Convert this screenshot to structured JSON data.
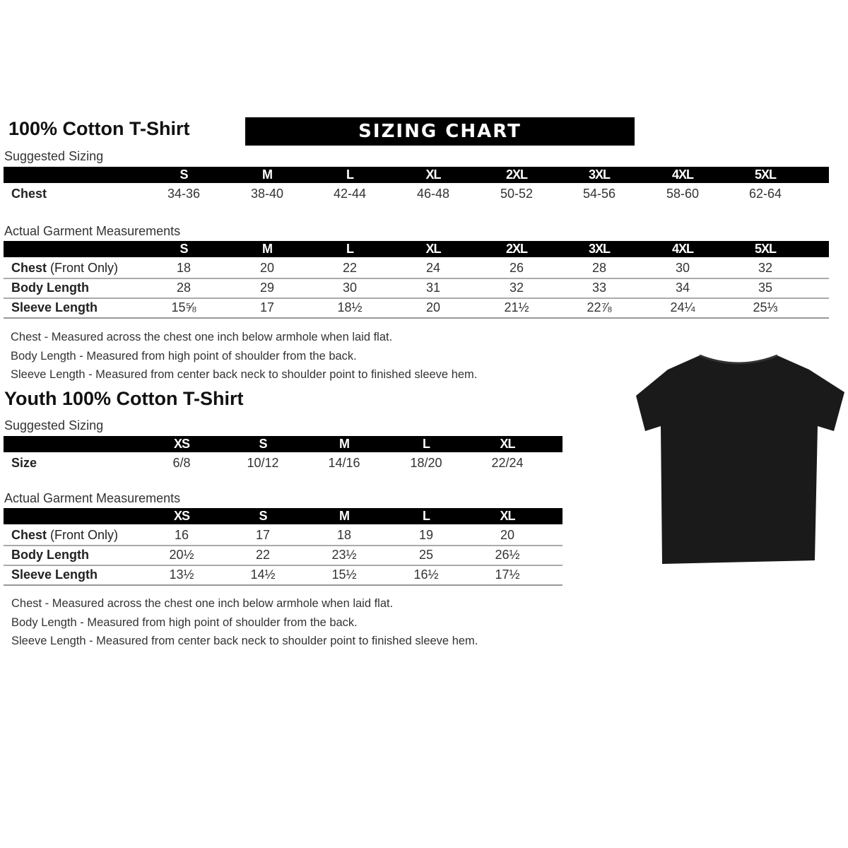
{
  "adult": {
    "title": "100% Cotton T-Shirt",
    "banner": "SIZING CHART",
    "suggested_label": "Suggested Sizing",
    "sizes": [
      "S",
      "M",
      "L",
      "XL",
      "2XL",
      "3XL",
      "4XL",
      "5XL"
    ],
    "suggested_rows": [
      {
        "label": "Chest",
        "values": [
          "34-36",
          "38-40",
          "42-44",
          "46-48",
          "50-52",
          "54-56",
          "58-60",
          "62-64"
        ]
      }
    ],
    "actual_label": "Actual Garment Measurements",
    "actual_rows": [
      {
        "label": "Chest",
        "label_note": "(Front Only)",
        "values": [
          "18",
          "20",
          "22",
          "24",
          "26",
          "28",
          "30",
          "32"
        ]
      },
      {
        "label": "Body Length",
        "label_note": "",
        "values": [
          "28",
          "29",
          "30",
          "31",
          "32",
          "33",
          "34",
          "35"
        ]
      },
      {
        "label": "Sleeve Length",
        "label_note": "",
        "values": [
          "15⅝",
          "17",
          "18½",
          "20",
          "21½",
          "22⅞",
          "24¼",
          "25⅓"
        ]
      }
    ],
    "notes": [
      "Chest - Measured across the chest one inch below armhole when laid flat.",
      "Body Length - Measured from high point of shoulder from the back.",
      "Sleeve Length - Measured from center back neck to shoulder point to finished sleeve hem."
    ]
  },
  "youth": {
    "title": "Youth 100% Cotton T-Shirt",
    "suggested_label": "Suggested Sizing",
    "sizes": [
      "XS",
      "S",
      "M",
      "L",
      "XL"
    ],
    "suggested_rows": [
      {
        "label": "Size",
        "values": [
          "6/8",
          "10/12",
          "14/16",
          "18/20",
          "22/24"
        ]
      }
    ],
    "actual_label": "Actual Garment Measurements",
    "actual_rows": [
      {
        "label": "Chest",
        "label_note": "(Front Only)",
        "values": [
          "16",
          "17",
          "18",
          "19",
          "20"
        ]
      },
      {
        "label": "Body Length",
        "label_note": "",
        "values": [
          "20½",
          "22",
          "23½",
          "25",
          "26½"
        ]
      },
      {
        "label": "Sleeve Length",
        "label_note": "",
        "values": [
          "13½",
          "14½",
          "15½",
          "16½",
          "17½"
        ]
      }
    ],
    "notes": [
      "Chest - Measured across the chest one inch below armhole when laid flat.",
      "Body Length - Measured from high point of shoulder from the back.",
      "Sleeve Length - Measured from center back neck to shoulder point to finished sleeve hem."
    ]
  },
  "image": {
    "icon": "black-tshirt-icon",
    "color": "#1a1a1a"
  }
}
